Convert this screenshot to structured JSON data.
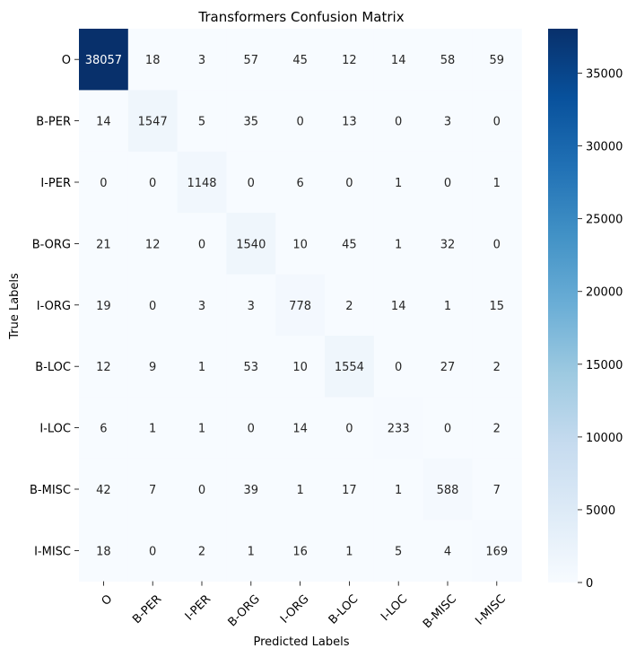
{
  "chart_data": {
    "type": "heatmap",
    "title": "Transformers Confusion Matrix",
    "xlabel": "Predicted Labels",
    "ylabel": "True Labels",
    "x_categories": [
      "O",
      "B-PER",
      "I-PER",
      "B-ORG",
      "I-ORG",
      "B-LOC",
      "I-LOC",
      "B-MISC",
      "I-MISC"
    ],
    "y_categories": [
      "O",
      "B-PER",
      "I-PER",
      "B-ORG",
      "I-ORG",
      "B-LOC",
      "I-LOC",
      "B-MISC",
      "I-MISC"
    ],
    "values": [
      [
        38057,
        18,
        3,
        57,
        45,
        12,
        14,
        58,
        59
      ],
      [
        14,
        1547,
        5,
        35,
        0,
        13,
        0,
        3,
        0
      ],
      [
        0,
        0,
        1148,
        0,
        6,
        0,
        1,
        0,
        1
      ],
      [
        21,
        12,
        0,
        1540,
        10,
        45,
        1,
        32,
        0
      ],
      [
        19,
        0,
        3,
        3,
        778,
        2,
        14,
        1,
        15
      ],
      [
        12,
        9,
        1,
        53,
        10,
        1554,
        0,
        27,
        2
      ],
      [
        6,
        1,
        1,
        0,
        14,
        0,
        233,
        0,
        2
      ],
      [
        42,
        7,
        0,
        39,
        1,
        17,
        1,
        588,
        7
      ],
      [
        18,
        0,
        2,
        1,
        16,
        1,
        5,
        4,
        169
      ]
    ],
    "colormap": "Blues",
    "colorbar": {
      "range": [
        0,
        38057
      ],
      "ticks": [
        0,
        5000,
        10000,
        15000,
        20000,
        25000,
        30000,
        35000
      ]
    },
    "grid": false
  }
}
